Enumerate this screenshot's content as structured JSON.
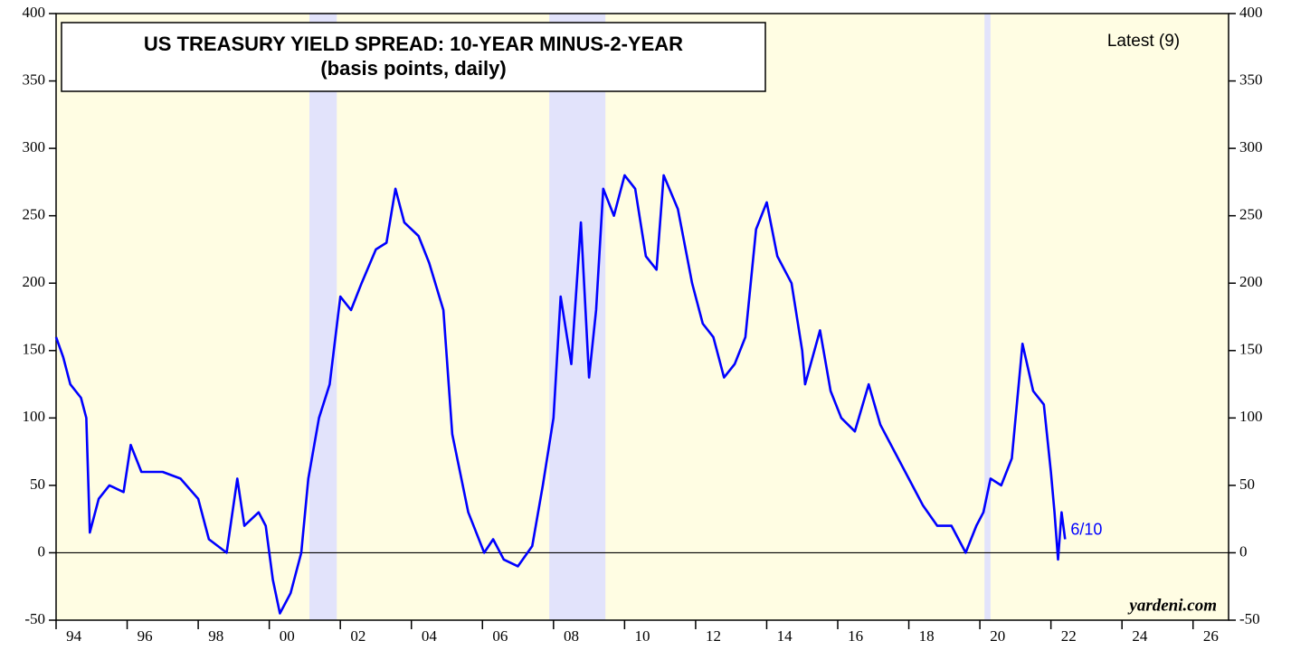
{
  "chart_data": {
    "type": "line",
    "title": "US TREASURY YIELD SPREAD: 10-YEAR MINUS-2-YEAR",
    "subtitle": "(basis points, daily)",
    "legend_note": "Latest (9)",
    "latest_label": "6/10",
    "source": "yardeni.com",
    "xlim": [
      1994,
      2027
    ],
    "ylim": [
      -50,
      400
    ],
    "yticks": [
      -50,
      0,
      50,
      100,
      150,
      200,
      250,
      300,
      350,
      400
    ],
    "xticks": [
      {
        "value": 1994,
        "label": "94"
      },
      {
        "value": 1996,
        "label": "96"
      },
      {
        "value": 1998,
        "label": "98"
      },
      {
        "value": 2000,
        "label": "00"
      },
      {
        "value": 2002,
        "label": "02"
      },
      {
        "value": 2004,
        "label": "04"
      },
      {
        "value": 2006,
        "label": "06"
      },
      {
        "value": 2008,
        "label": "08"
      },
      {
        "value": 2010,
        "label": "10"
      },
      {
        "value": 2012,
        "label": "12"
      },
      {
        "value": 2014,
        "label": "14"
      },
      {
        "value": 2016,
        "label": "16"
      },
      {
        "value": 2018,
        "label": "18"
      },
      {
        "value": 2020,
        "label": "20"
      },
      {
        "value": 2022,
        "label": "22"
      },
      {
        "value": 2024,
        "label": "24"
      },
      {
        "value": 2026,
        "label": "26"
      }
    ],
    "hline": 0,
    "background": "#fffde3",
    "recession_color": "#e2e3fb",
    "recessions": [
      [
        2001.13,
        2001.9
      ],
      [
        2007.88,
        2009.46
      ],
      [
        2020.13,
        2020.3
      ]
    ],
    "series": [
      {
        "name": "10-year minus 2-year",
        "color": "#0000ff",
        "x": [
          1994.0,
          1994.2,
          1994.4,
          1994.7,
          1994.85,
          1994.95,
          1995.2,
          1995.5,
          1995.9,
          1996.1,
          1996.4,
          1997.0,
          1997.5,
          1998.0,
          1998.3,
          1998.8,
          1999.1,
          1999.3,
          1999.7,
          1999.9,
          2000.1,
          2000.3,
          2000.6,
          2000.9,
          2001.1,
          2001.4,
          2001.7,
          2002.0,
          2002.3,
          2002.6,
          2003.0,
          2003.3,
          2003.55,
          2003.8,
          2004.2,
          2004.5,
          2004.9,
          2005.15,
          2005.6,
          2006.05,
          2006.3,
          2006.6,
          2007.0,
          2007.4,
          2007.7,
          2008.0,
          2008.2,
          2008.5,
          2008.77,
          2009.0,
          2009.2,
          2009.4,
          2009.7,
          2010.0,
          2010.3,
          2010.6,
          2010.9,
          2011.1,
          2011.5,
          2011.9,
          2012.2,
          2012.5,
          2012.8,
          2013.1,
          2013.4,
          2013.7,
          2014.0,
          2014.3,
          2014.7,
          2015.0,
          2015.08,
          2015.5,
          2015.8,
          2016.1,
          2016.48,
          2016.87,
          2017.2,
          2017.6,
          2018.0,
          2018.4,
          2018.8,
          2019.2,
          2019.6,
          2019.9,
          2020.1,
          2020.3,
          2020.6,
          2020.9,
          2021.2,
          2021.5,
          2021.8,
          2022.0,
          2022.1,
          2022.2,
          2022.3,
          2022.4
        ],
        "values": [
          160,
          145,
          125,
          115,
          100,
          15,
          40,
          50,
          45,
          80,
          60,
          60,
          55,
          40,
          10,
          0,
          55,
          20,
          30,
          20,
          -20,
          -45,
          -30,
          0,
          55,
          100,
          125,
          190,
          180,
          200,
          225,
          230,
          270,
          245,
          235,
          215,
          180,
          88,
          30,
          0,
          10,
          -5,
          -10,
          5,
          50,
          100,
          190,
          140,
          245,
          130,
          180,
          270,
          250,
          280,
          270,
          220,
          210,
          280,
          255,
          200,
          170,
          160,
          130,
          140,
          160,
          240,
          260,
          220,
          200,
          150,
          125,
          165,
          120,
          100,
          90,
          125,
          95,
          75,
          55,
          35,
          20,
          20,
          0,
          20,
          30,
          55,
          50,
          70,
          155,
          120,
          110,
          60,
          30,
          -5,
          30,
          10
        ]
      }
    ]
  }
}
